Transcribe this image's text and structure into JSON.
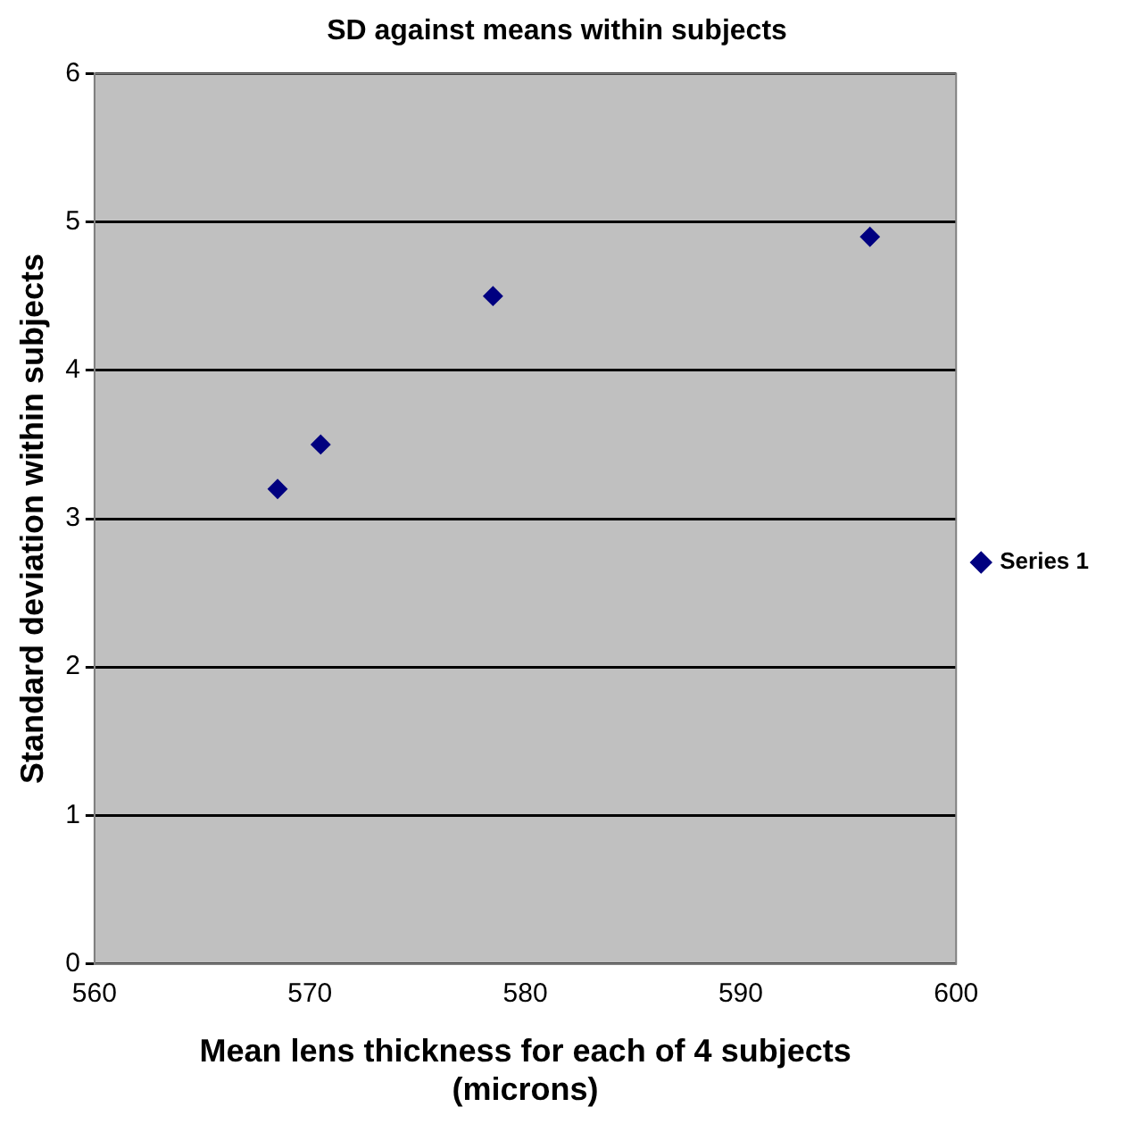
{
  "chart_data": {
    "type": "scatter",
    "title": "SD against means within subjects",
    "xlabel": "Mean lens thickness for each of 4 subjects (microns)",
    "ylabel": "Standard deviation within subjects",
    "x": [
      568.5,
      570.5,
      578.5,
      596
    ],
    "series": [
      {
        "name": "Series 1",
        "color": "#000080",
        "values": [
          3.2,
          3.5,
          4.5,
          4.9
        ]
      }
    ],
    "xlim": [
      560,
      600
    ],
    "xticks": [
      560,
      570,
      580,
      590,
      600
    ],
    "ylim": [
      0,
      6
    ],
    "yticks": [
      0,
      1,
      2,
      3,
      4,
      5,
      6
    ],
    "grid": "y",
    "legend": "right",
    "marker": "diamond"
  }
}
